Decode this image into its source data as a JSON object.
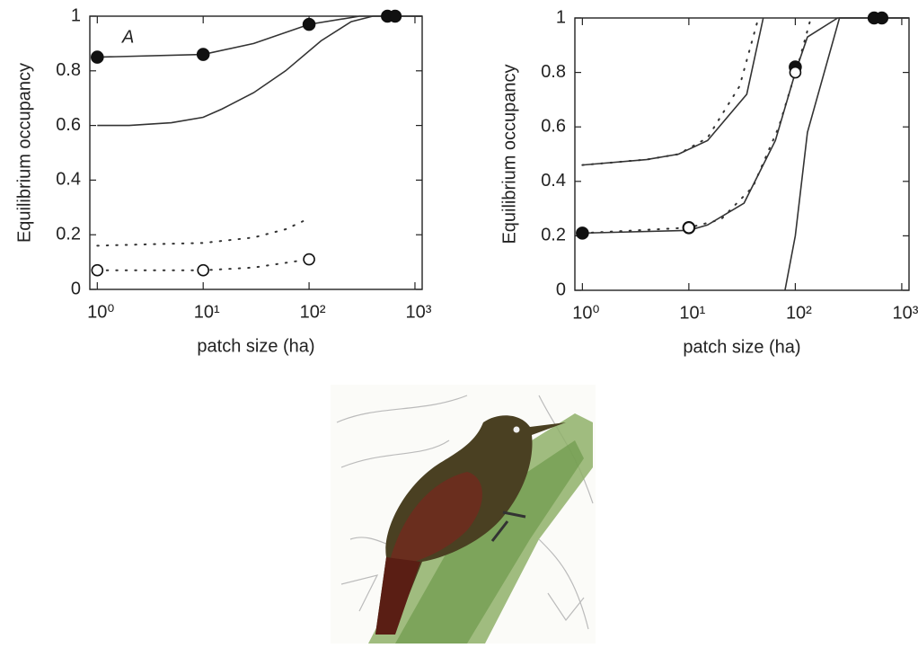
{
  "chart_data": [
    {
      "type": "line",
      "xscale": "log",
      "annotation": "A",
      "xlabel": "patch size (ha)",
      "ylabel": "Equilibrium occupancy",
      "xlim": [
        0.85,
        1170
      ],
      "ylim": [
        0,
        1
      ],
      "xticks": [
        {
          "value": 1,
          "label": "10⁰"
        },
        {
          "value": 10,
          "label": "10¹"
        },
        {
          "value": 100,
          "label": "10²"
        },
        {
          "value": 1000,
          "label": "10³"
        }
      ],
      "yticks": [
        0,
        0.2,
        0.4,
        0.6,
        0.8,
        1
      ],
      "series": [
        {
          "line": "solid",
          "marker": "none",
          "color": "#333",
          "x": [
            1,
            10,
            30,
            100,
            300,
            1170
          ],
          "values": [
            0.85,
            0.86,
            0.9,
            0.97,
            1,
            1
          ]
        },
        {
          "line": "solid",
          "marker": "none",
          "color": "#333",
          "x": [
            1,
            2,
            5,
            10,
            15,
            30,
            60,
            130,
            250,
            400,
            1170
          ],
          "values": [
            0.6,
            0.6,
            0.61,
            0.63,
            0.66,
            0.72,
            0.8,
            0.91,
            0.98,
            1,
            1
          ]
        },
        {
          "line": "dotted",
          "marker": "none",
          "color": "#333",
          "x": [
            1,
            3,
            10,
            30,
            60,
            100
          ],
          "values": [
            0.16,
            0.165,
            0.17,
            0.19,
            0.22,
            0.26
          ]
        },
        {
          "line": "dotted",
          "marker": "none",
          "color": "#333",
          "x": [
            1,
            10,
            30,
            100
          ],
          "values": [
            0.07,
            0.07,
            0.08,
            0.11
          ]
        },
        {
          "line": "none",
          "marker": "filled",
          "color": "#111",
          "x": [
            1,
            10,
            100,
            550,
            650
          ],
          "values": [
            0.85,
            0.86,
            0.97,
            1,
            1
          ]
        },
        {
          "line": "none",
          "marker": "open",
          "color": "#111",
          "x": [
            1,
            10,
            100
          ],
          "values": [
            0.07,
            0.07,
            0.11
          ]
        }
      ]
    },
    {
      "type": "line",
      "xscale": "log",
      "xlabel": "patch size (ha)",
      "ylabel": "Equilibrium occupancy",
      "xlim": [
        0.85,
        1170
      ],
      "ylim": [
        0,
        1
      ],
      "xticks": [
        {
          "value": 1,
          "label": "10⁰"
        },
        {
          "value": 10,
          "label": "10¹"
        },
        {
          "value": 100,
          "label": "10²"
        },
        {
          "value": 1000,
          "label": "10³"
        }
      ],
      "yticks": [
        0,
        0.2,
        0.4,
        0.6,
        0.8,
        1
      ],
      "series": [
        {
          "line": "solid",
          "marker": "none",
          "color": "#333",
          "x": [
            1,
            4,
            8,
            15,
            35,
            50
          ],
          "values": [
            0.46,
            0.48,
            0.5,
            0.55,
            0.72,
            1
          ]
        },
        {
          "line": "dotted",
          "marker": "none",
          "color": "#333",
          "x": [
            1,
            4,
            8,
            15,
            30,
            45
          ],
          "values": [
            0.46,
            0.48,
            0.5,
            0.56,
            0.75,
            1
          ]
        },
        {
          "line": "solid",
          "marker": "none",
          "color": "#333",
          "x": [
            1,
            10,
            15,
            33,
            65,
            100,
            130,
            250,
            1170
          ],
          "values": [
            0.21,
            0.22,
            0.24,
            0.32,
            0.55,
            0.8,
            0.93,
            1,
            1
          ]
        },
        {
          "line": "dotted",
          "marker": "none",
          "color": "#333",
          "x": [
            1,
            10,
            20,
            40,
            70,
            110,
            140
          ],
          "values": [
            0.21,
            0.23,
            0.26,
            0.38,
            0.6,
            0.85,
            1
          ]
        },
        {
          "line": "solid",
          "marker": "none",
          "color": "#333",
          "x": [
            80,
            100,
            130,
            260,
            1170
          ],
          "values": [
            0,
            0.2,
            0.58,
            1,
            1
          ]
        },
        {
          "line": "none",
          "marker": "filled",
          "color": "#111",
          "x": [
            1,
            10,
            100,
            550,
            650
          ],
          "values": [
            0.21,
            0.23,
            0.82,
            1,
            1
          ]
        },
        {
          "line": "none",
          "marker": "open",
          "color": "#111",
          "x": [
            10,
            100
          ],
          "values": [
            0.23,
            0.8
          ]
        }
      ]
    }
  ]
}
